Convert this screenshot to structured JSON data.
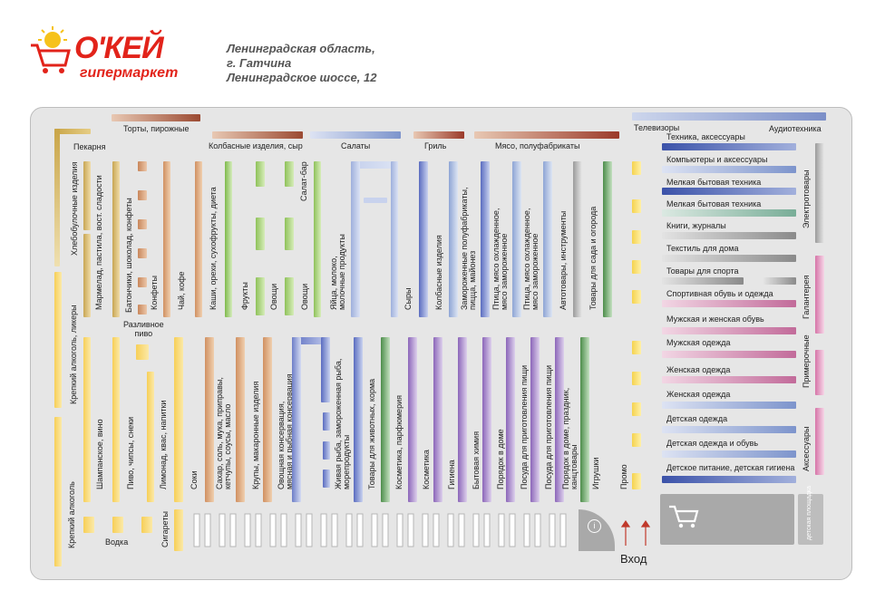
{
  "brand": {
    "name": "О'КЕЙ",
    "subtitle": "гипермаркет",
    "logo_icon": "cart-with-sun-icon",
    "color": "#e2231a"
  },
  "address": {
    "line1": "Ленинградская область,",
    "line2": "г. Гатчина",
    "line3": "Ленинградское шоссе, 12"
  },
  "top_labels": {
    "torty": "Торты, пирожные",
    "kolbasnye": "Колбасные изделия, сыр",
    "salaty": "Салаты",
    "gril": "Гриль",
    "myaso": "Мясо, полуфабрикаты",
    "televizory": "Телевизоры",
    "audio": "Аудиотехника",
    "pekarnya": "Пекарня"
  },
  "right_labels": {
    "r1": "Техника, аксессуары",
    "r2": "Компьютеры и аксессуары",
    "r3": "Мелкая бытовая техника",
    "r4": "Мелкая бытовая техника",
    "r5": "Книги, журналы",
    "r6": "Текстиль для дома",
    "r7": "Товары для спорта",
    "r8": "Спортивная обувь и одежда",
    "r9": "Мужская и женская обувь",
    "r10": "Мужская одежда",
    "r11": "Женская одежда",
    "r12": "Женская одежда",
    "r13": "Детская одежда",
    "r14": "Детская одежда и обувь",
    "r15": "Детское питание, детская гигиена",
    "side1": "Электротовары",
    "side2": "Галантерея",
    "side3": "Примерочные",
    "side4": "Аксессуары",
    "kids": "детская площадка"
  },
  "upper_vertical": {
    "v1": "Хлебобулочные изделия",
    "v2": "Мармелад, пастила, вост. сладости",
    "v3": "Батончики, шоколад, конфеты",
    "v4": "Конфеты",
    "v5": "Чай, кофе",
    "v6": "Каши, орехи, сухофрукты, диета",
    "v7": "Фрукты",
    "v8": "Овощи",
    "v9": "Овощи",
    "v10": "Салат-бар",
    "v11": "Яйца, молоко,\nмолочные продукты",
    "v12": "Сыры",
    "v13": "Колбасные изделия",
    "v14": "Замороженные полуфабрикаты,\nпицца, майонез",
    "v15": "Птица, мясо охлажденное,\nмясо замороженное",
    "v16": "Птица, мясо охлажденное,\nмясо замороженное",
    "v17": "Автотовары, инструменты",
    "v18": "Товары для сада и огорода"
  },
  "lower_vertical": {
    "l1": "Крепкий алкоголь, ликеры",
    "l2": "Крепкий алкоголь",
    "l3": "Шампанское, вино",
    "l4": "Пиво, чипсы, снеки",
    "l5": "Лимонад, квас, напитки",
    "l6": "Соки",
    "l7": "Сахар, соль, мука, приправы,\nкетчупы, соусы, масло",
    "l8": "Крупы, макаронные изделия",
    "l9": "Овощная консервация,\nмясная и рыбная консервация",
    "l10": "Живая рыба, замороженная рыба,\nморепродукты",
    "l11": "Товары для животных, корма",
    "l12": "Косметика, парфюмерия",
    "l13": "Косметика",
    "l14": "Гигиена",
    "l15": "Бытовая химия",
    "l16": "Порядок в доме",
    "l17": "Посуда для приготовления пищи",
    "l18": "Посуда для приготовления пищи",
    "l19": "Порядок в доме, праздник,\nканцтовары",
    "l20": "Игрушки",
    "l21": "Промо"
  },
  "misc": {
    "pivo": "Разливное\nпиво",
    "vodka": "Водка",
    "sigarety": "Сигареты",
    "vhod": "Вход",
    "info": "i"
  }
}
